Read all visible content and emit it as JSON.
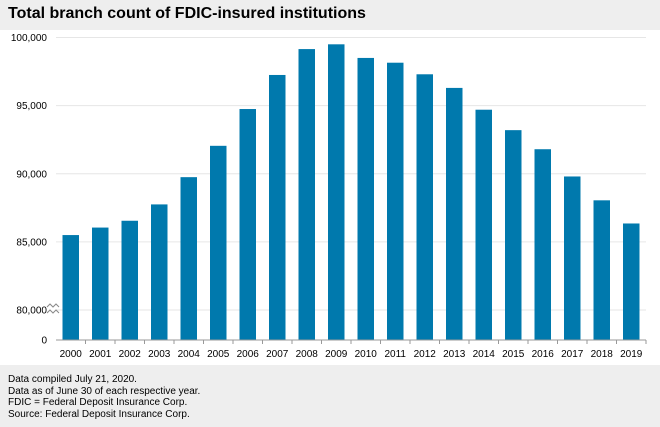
{
  "title": "Total branch count of FDIC-insured institutions",
  "chart_data": {
    "type": "bar",
    "title": "Total branch count of FDIC-insured institutions",
    "xlabel": "",
    "ylabel": "",
    "categories": [
      "2000",
      "2001",
      "2002",
      "2003",
      "2004",
      "2005",
      "2006",
      "2007",
      "2008",
      "2009",
      "2010",
      "2011",
      "2012",
      "2013",
      "2014",
      "2015",
      "2016",
      "2017",
      "2018",
      "2019"
    ],
    "values": [
      85500,
      86050,
      86550,
      87750,
      89750,
      92050,
      94750,
      97250,
      99150,
      99500,
      98500,
      98150,
      97300,
      96300,
      94700,
      93200,
      91800,
      89800,
      88050,
      86350
    ],
    "ylim": [
      0,
      100000
    ],
    "axis_break": {
      "from": 0,
      "to": 75000
    },
    "y_ticks": [
      {
        "value": 0,
        "label": "0"
      },
      {
        "value": 80000,
        "label": "80,000"
      },
      {
        "value": 85000,
        "label": "85,000"
      },
      {
        "value": 90000,
        "label": "90,000"
      },
      {
        "value": 95000,
        "label": "95,000"
      },
      {
        "value": 100000,
        "label": "100,000"
      }
    ],
    "bar_color": "#0079ad",
    "grid": true
  },
  "notes": [
    "Data compiled July 21, 2020.",
    "Data as of June 30 of each respective year.",
    "FDIC = Federal Deposit Insurance Corp.",
    "Source: Federal Deposit Insurance Corp."
  ]
}
